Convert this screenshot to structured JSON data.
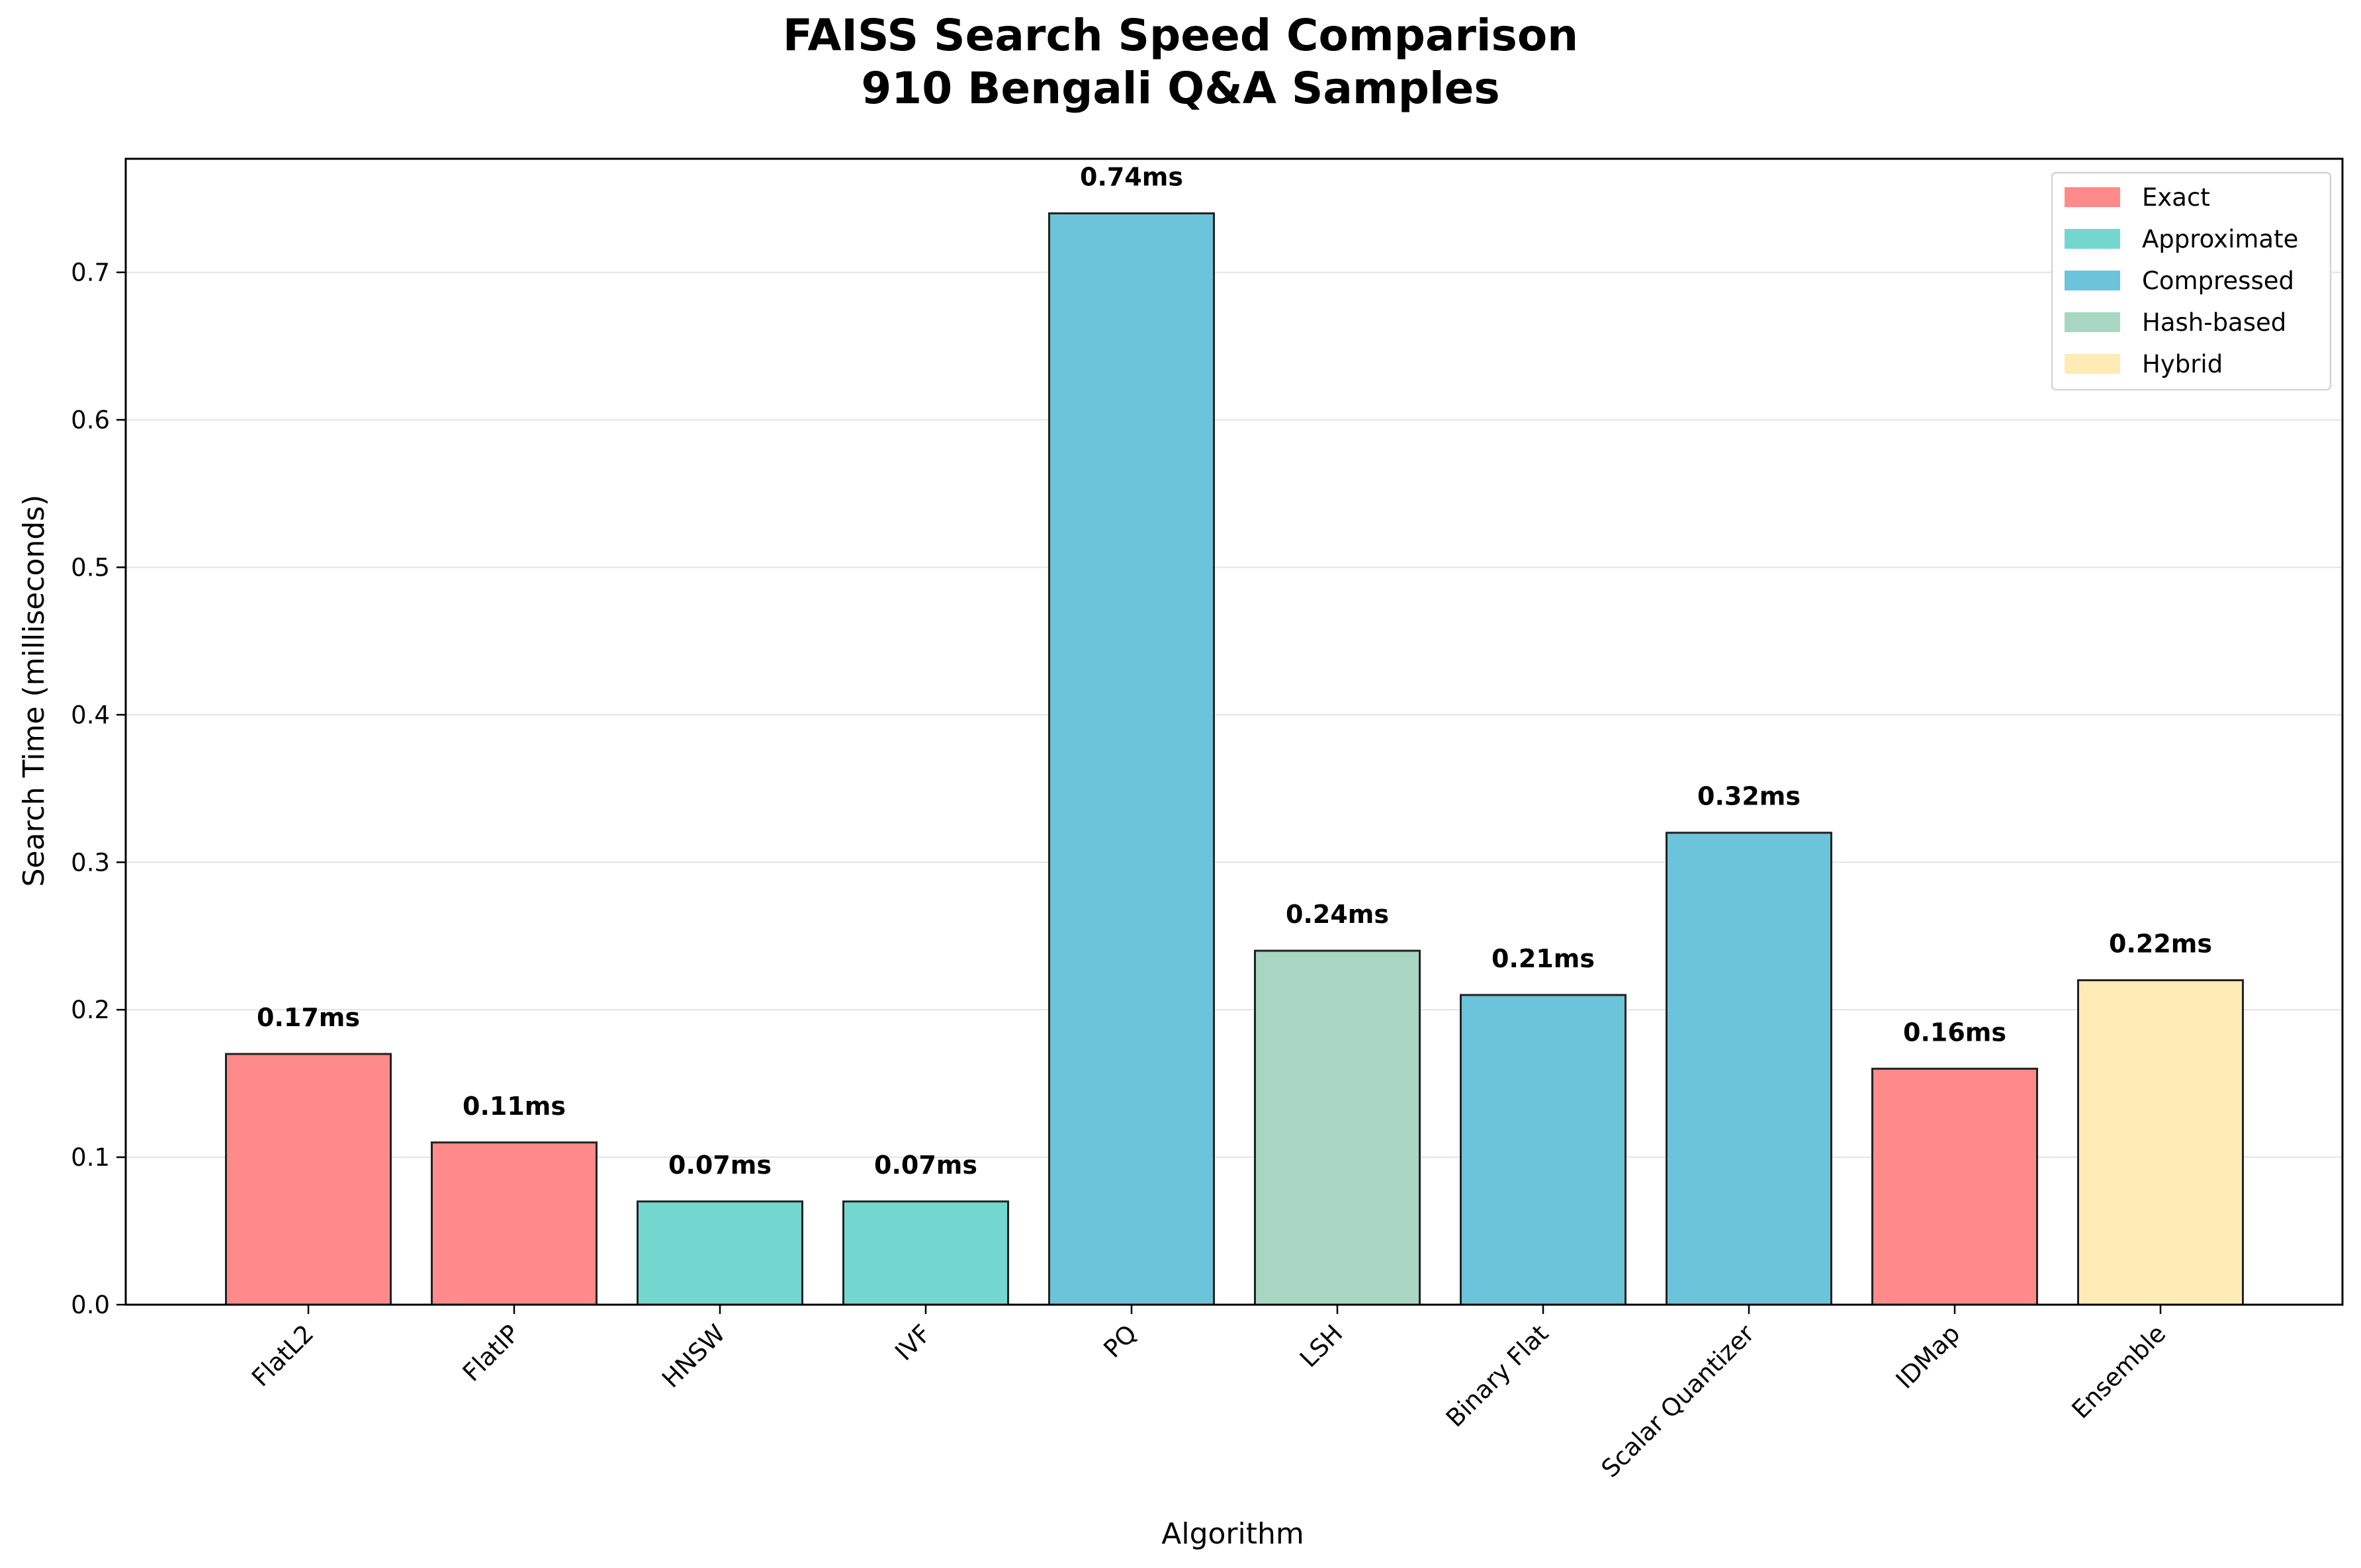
{
  "chart_data": {
    "type": "bar",
    "title": "FAISS Search Speed Comparison",
    "subtitle": "910 Bengali Q&A Samples",
    "xlabel": "Algorithm",
    "ylabel": "Search Time (milliseconds)",
    "ylim": [
      0,
      0.777
    ],
    "yticks": [
      "0.0",
      "0.1",
      "0.2",
      "0.3",
      "0.4",
      "0.5",
      "0.6",
      "0.7"
    ],
    "grid": "horizontal",
    "legend_position": "top-right",
    "categories": [
      "FlatL2",
      "FlatIP",
      "HNSW",
      "IVF",
      "PQ",
      "LSH",
      "Binary Flat",
      "Scalar Quantizer",
      "IDMap",
      "Ensemble"
    ],
    "values": [
      0.17,
      0.11,
      0.07,
      0.07,
      0.74,
      0.24,
      0.21,
      0.32,
      0.16,
      0.22
    ],
    "data_labels": [
      "0.17ms",
      "0.11ms",
      "0.07ms",
      "0.07ms",
      "0.74ms",
      "0.24ms",
      "0.21ms",
      "0.32ms",
      "0.16ms",
      "0.22ms"
    ],
    "bar_groups": [
      "Exact",
      "Exact",
      "Approximate",
      "Approximate",
      "Compressed",
      "Hash-based",
      "Compressed",
      "Compressed",
      "Exact",
      "Hybrid"
    ],
    "legend": [
      {
        "name": "Exact",
        "color": "#ff8a8a"
      },
      {
        "name": "Approximate",
        "color": "#73d7cf"
      },
      {
        "name": "Compressed",
        "color": "#6bc4d9"
      },
      {
        "name": "Hash-based",
        "color": "#a9d6c2"
      },
      {
        "name": "Hybrid",
        "color": "#ffebb5"
      }
    ]
  }
}
